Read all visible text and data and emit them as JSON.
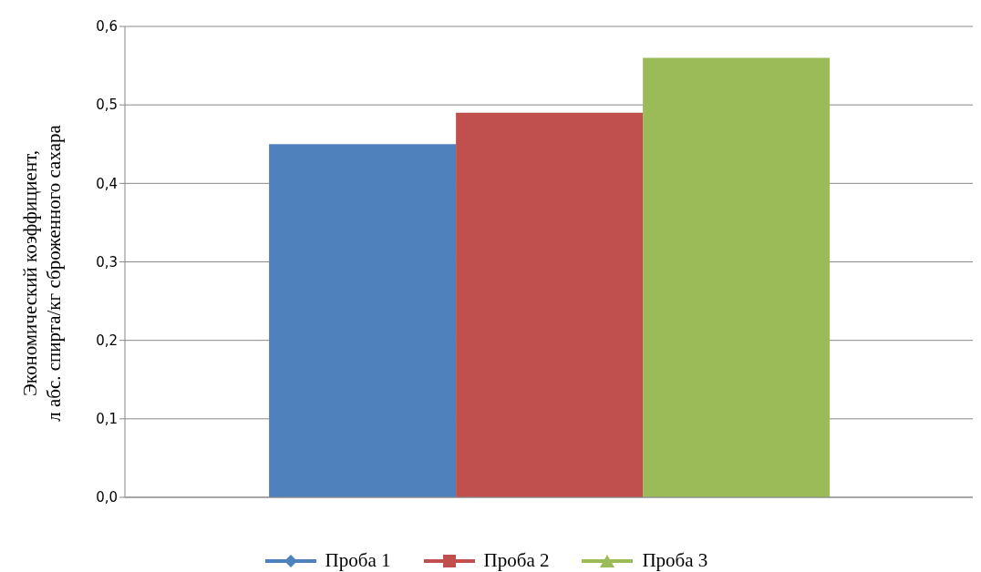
{
  "chart_data": {
    "type": "bar",
    "ylabel": "Экономический коэффициент,\nл абс. спирта/кг сброженного сахара",
    "categories": [
      null
    ],
    "series": [
      {
        "name": "Проба 1",
        "color": "#4f81bd",
        "values": [
          0.45
        ]
      },
      {
        "name": "Проба 2",
        "color": "#c0504d",
        "values": [
          0.49
        ]
      },
      {
        "name": "Проба 3",
        "color": "#9bbb59",
        "values": [
          0.56
        ]
      }
    ],
    "ylim": [
      0,
      0.6
    ],
    "yticks": [
      {
        "value": 0,
        "label": "0,0"
      },
      {
        "value": 0.1,
        "label": "0,1"
      },
      {
        "value": 0.2,
        "label": "0,2"
      },
      {
        "value": 0.3,
        "label": "0,3"
      },
      {
        "value": 0.4,
        "label": "0,4"
      },
      {
        "value": 0.5,
        "label": "0,5"
      },
      {
        "value": 0.6,
        "label": "0,6"
      }
    ],
    "grid": "y",
    "legend": "bottom"
  }
}
